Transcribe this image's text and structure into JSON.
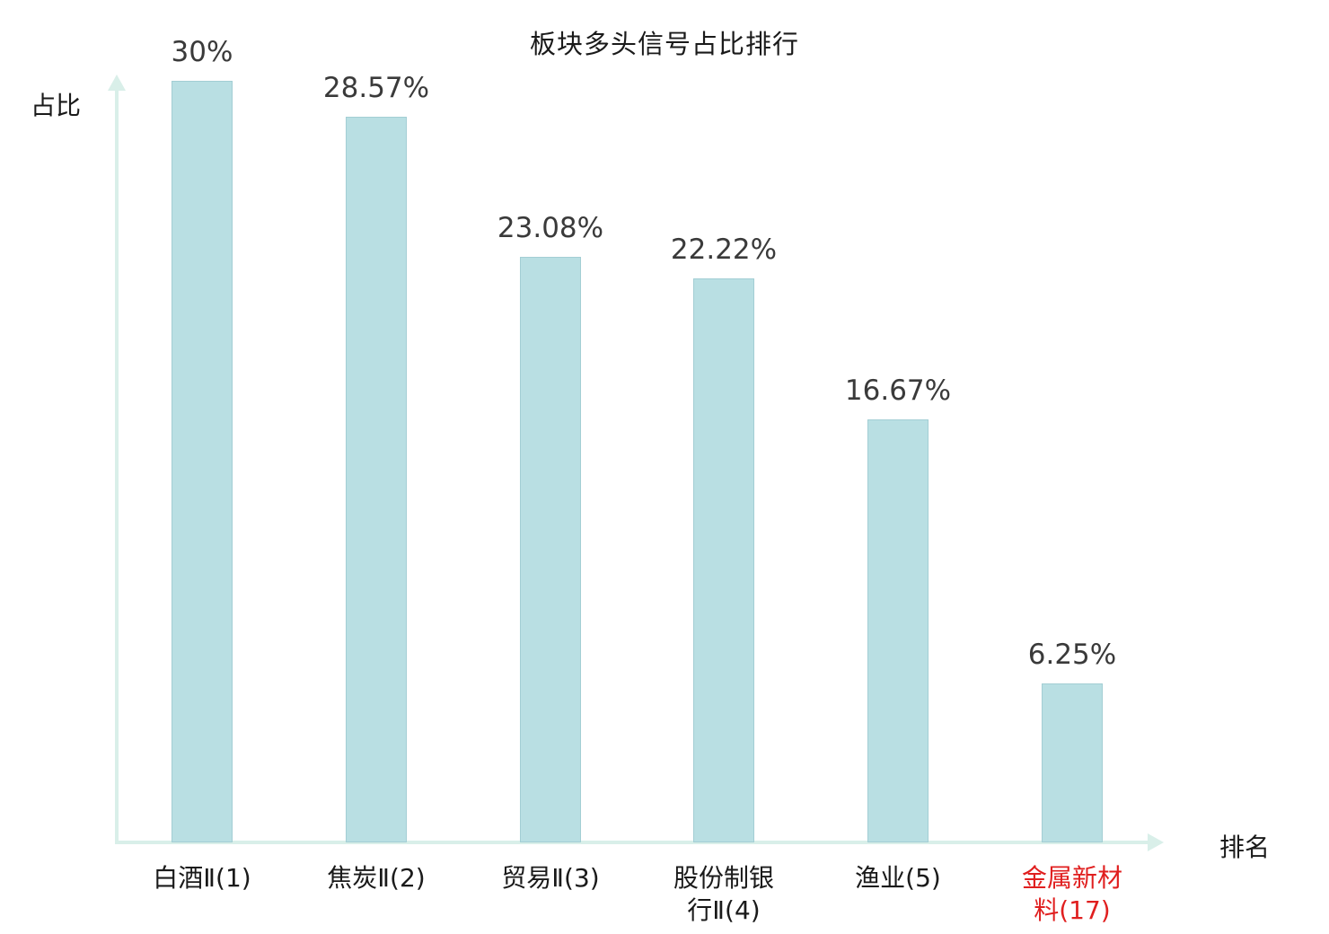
{
  "chart_data": {
    "type": "bar",
    "title": "板块多头信号占比排行",
    "xlabel": "排名",
    "ylabel": "占比",
    "categories": [
      "白酒Ⅱ(1)",
      "焦炭Ⅱ(2)",
      "贸易Ⅱ(3)",
      "股份制银行Ⅱ(4)",
      "渔业(5)",
      "金属新材料(17)"
    ],
    "values": [
      30,
      28.57,
      23.08,
      22.22,
      16.67,
      6.25
    ],
    "value_labels": [
      "30%",
      "28.57%",
      "23.08%",
      "22.22%",
      "16.67%",
      "6.25%"
    ],
    "highlight_index": 5,
    "ylim": [
      0,
      30
    ],
    "grid": "off",
    "legend": "none",
    "colors": {
      "bar_fill": "#b9dfe3",
      "bar_border": "#a3ced4",
      "axis": "#d9efe9",
      "value_label": "#3a3a3a",
      "category_label": "#1a1a1a",
      "highlight": "#e01f1f"
    }
  }
}
